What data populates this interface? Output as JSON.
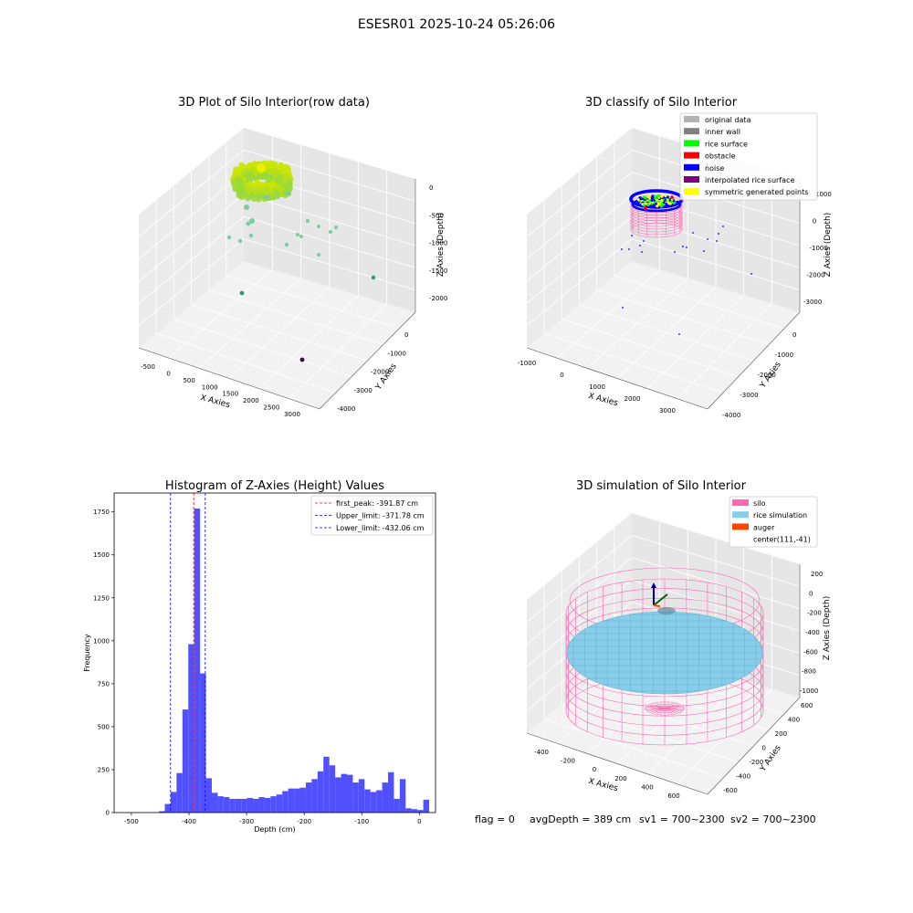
{
  "suptitle": "ESESR01 2025-10-24 05:26:06",
  "footer": {
    "flag": "flag = 0",
    "avg_depth": "avgDepth = 389 cm",
    "sv1": "sv1 = 700~2300",
    "sv2": "sv2 = 700~2300"
  },
  "colors": {
    "raw_high": "#c8e600",
    "raw_mid": "#7ccba2",
    "raw_low": "#440154",
    "gray": "#b3b3b3",
    "inner_wall": "#808080",
    "rice_surface": "#00ff00",
    "obstacle": "#ff0000",
    "noise": "#0000ff",
    "interpolated": "#800080",
    "symmetric": "#ffff00",
    "hist_bar": "#5050ff",
    "peak_line": "#ff0000",
    "limit_line": "#0000ff",
    "silo": "#ff69b4",
    "rice_sim": "#87ceeb",
    "auger": "#ff4500"
  },
  "panels": {
    "raw": {
      "title": "3D Plot of Silo Interior(row data)",
      "xlabel": "X Axies",
      "ylabel": "Y Axies",
      "zlabel": "Z Axies (Depth)",
      "x_ticks": [
        "-500",
        "0",
        "500",
        "1000",
        "1500",
        "2000",
        "2500",
        "3000"
      ],
      "y_ticks": [
        "0",
        "-1000",
        "-2000",
        "-3000",
        "-4000"
      ],
      "z_ticks": [
        "0",
        "-500",
        "-1000",
        "-1500",
        "-2000"
      ]
    },
    "classify": {
      "title": "3D classify of Silo Interior",
      "xlabel": "X Axies",
      "ylabel": "Y Axies",
      "zlabel": "Z Axies (Depth)",
      "x_ticks": [
        "-1000",
        "0",
        "1000",
        "2000",
        "3000"
      ],
      "y_ticks": [
        "0",
        "-1000",
        "-2000",
        "-3000",
        "-4000"
      ],
      "z_ticks": [
        "1000",
        "0",
        "-1000",
        "-2000",
        "-3000"
      ],
      "legend": [
        "original data",
        "inner wall",
        "rice surface",
        "obstacle",
        "noise",
        "interpolated rice surface",
        "symmetric generated points"
      ]
    },
    "simulation": {
      "title": "3D simulation of Silo Interior",
      "xlabel": "X Axies",
      "ylabel": "Y Axies",
      "zlabel": "Z Axies (Depth)",
      "x_ticks": [
        "-400",
        "-200",
        "0",
        "200",
        "400",
        "600"
      ],
      "y_ticks": [
        "600",
        "400",
        "200",
        "0",
        "-200",
        "-400",
        "-600"
      ],
      "z_ticks": [
        "200",
        "0",
        "-200",
        "-400",
        "-600",
        "-800",
        "-1000"
      ],
      "legend": [
        "silo",
        "rice simulation",
        "auger",
        "center(111,-41)"
      ]
    }
  },
  "chart_data": {
    "type": "bar",
    "title": "Histogram of Z-Axies (Height) Values",
    "xlabel": "Depth (cm)",
    "ylabel": "Frequency",
    "xlim": [
      -530,
      28
    ],
    "ylim": [
      0,
      1860
    ],
    "x_ticks": [
      -500,
      -400,
      -300,
      -200,
      -100,
      0
    ],
    "y_ticks": [
      0,
      250,
      500,
      750,
      1000,
      1250,
      1500,
      1750
    ],
    "bin_start": -442,
    "bin_width": 10.2,
    "values": [
      50,
      120,
      230,
      600,
      980,
      1770,
      810,
      200,
      115,
      95,
      90,
      80,
      80,
      80,
      85,
      80,
      90,
      85,
      95,
      105,
      125,
      140,
      140,
      145,
      175,
      195,
      240,
      325,
      275,
      205,
      225,
      220,
      175,
      195,
      135,
      120,
      130,
      175,
      235,
      80,
      195,
      25,
      20,
      15,
      75
    ],
    "extra_bars": [
      {
        "x": -452,
        "value": 8
      }
    ],
    "lines": [
      {
        "label": "first_peak: -391.87 cm",
        "x": -391.87,
        "style": "peak"
      },
      {
        "label": "Upper_limit: -371.78 cm",
        "x": -371.78,
        "style": "limit"
      },
      {
        "label": "Lower_limit: -432.06 cm",
        "x": -432.06,
        "style": "limit"
      }
    ]
  }
}
